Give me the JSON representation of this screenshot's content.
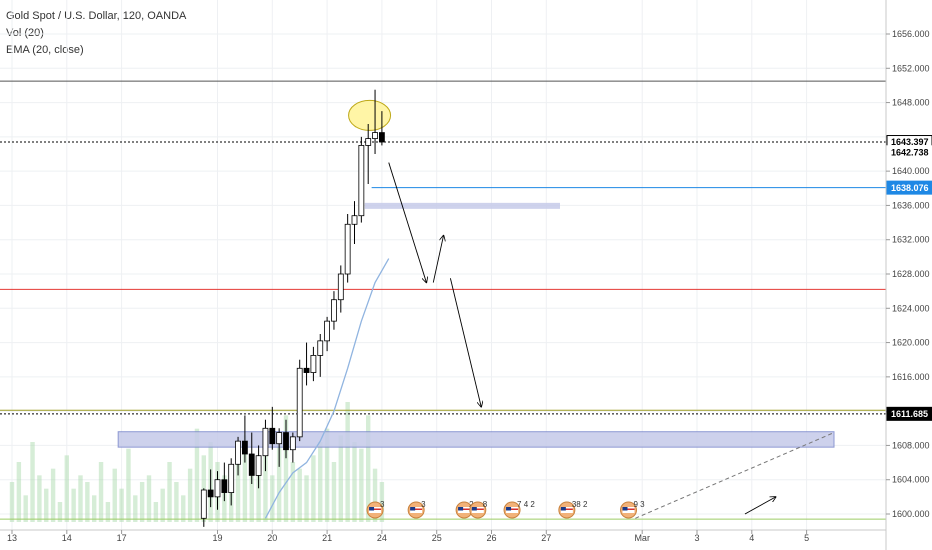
{
  "legend": {
    "title": "Gold Spot / U.S. Dollar, 120, OANDA",
    "volume": "Vol (20)",
    "ema": "EMA (20, close)"
  },
  "colors": {
    "up": "#ffffff",
    "down": "#000000",
    "wick": "#000000",
    "volume": "#a5d6a7",
    "ema": "#90b4e0",
    "red_line": "#e53935",
    "blue_line": "#1e88e5",
    "zone": "#c5cae9",
    "highlight": "#fff59d",
    "green_line": "#9ccc65"
  },
  "chart_data": {
    "type": "candlestick",
    "title": "Gold Spot / U.S. Dollar, 120, OANDA",
    "x_ticks": [
      {
        "i": 0,
        "label": "13"
      },
      {
        "i": 8,
        "label": "14"
      },
      {
        "i": 16,
        "label": "17"
      },
      {
        "i": 30,
        "label": "19"
      },
      {
        "i": 38,
        "label": "20"
      },
      {
        "i": 46,
        "label": "21"
      },
      {
        "i": 54,
        "label": "24"
      },
      {
        "i": 62,
        "label": "25"
      },
      {
        "i": 70,
        "label": "26"
      },
      {
        "i": 78,
        "label": "27"
      },
      {
        "i": 92,
        "label": "Mar"
      },
      {
        "i": 100,
        "label": "3"
      },
      {
        "i": 108,
        "label": "4"
      },
      {
        "i": 116,
        "label": "5"
      }
    ],
    "y_ticks": [
      1600,
      1604,
      1608,
      1612,
      1616,
      1620,
      1624,
      1628,
      1632,
      1636,
      1640,
      1644,
      1648,
      1652,
      1656
    ],
    "y_tick_labels": [
      "1600.000",
      "1604.000",
      "1608.000",
      "",
      "1616.000",
      "1620.000",
      "1624.000",
      "1628.000",
      "1632.000",
      "1636.000",
      "1640.000",
      "",
      "1648.000",
      "1652.000",
      "1656.000"
    ],
    "ylim": [
      1598,
      1660
    ],
    "candles": [
      {
        "i": 28,
        "o": 1599.5,
        "h": 1603.0,
        "l": 1598.5,
        "c": 1602.8
      },
      {
        "i": 29,
        "o": 1602.8,
        "h": 1605.2,
        "l": 1600.8,
        "c": 1602.0
      },
      {
        "i": 30,
        "o": 1602.0,
        "h": 1605.0,
        "l": 1600.5,
        "c": 1604.0
      },
      {
        "i": 31,
        "o": 1604.0,
        "h": 1606.0,
        "l": 1601.5,
        "c": 1602.5
      },
      {
        "i": 32,
        "o": 1602.5,
        "h": 1606.5,
        "l": 1601.0,
        "c": 1605.8
      },
      {
        "i": 33,
        "o": 1605.8,
        "h": 1609.0,
        "l": 1604.5,
        "c": 1608.5
      },
      {
        "i": 34,
        "o": 1608.5,
        "h": 1611.5,
        "l": 1606.0,
        "c": 1607.0
      },
      {
        "i": 35,
        "o": 1607.0,
        "h": 1609.5,
        "l": 1603.5,
        "c": 1604.5
      },
      {
        "i": 36,
        "o": 1604.5,
        "h": 1608.0,
        "l": 1603.0,
        "c": 1606.8
      },
      {
        "i": 37,
        "o": 1606.8,
        "h": 1611.0,
        "l": 1605.0,
        "c": 1610.0
      },
      {
        "i": 38,
        "o": 1610.0,
        "h": 1612.5,
        "l": 1607.5,
        "c": 1608.2
      },
      {
        "i": 39,
        "o": 1608.2,
        "h": 1610.0,
        "l": 1605.5,
        "c": 1609.5
      },
      {
        "i": 40,
        "o": 1609.5,
        "h": 1611.0,
        "l": 1606.5,
        "c": 1607.5
      },
      {
        "i": 41,
        "o": 1607.5,
        "h": 1609.5,
        "l": 1606.0,
        "c": 1609.0
      },
      {
        "i": 42,
        "o": 1609.0,
        "h": 1618.0,
        "l": 1608.5,
        "c": 1617.0
      },
      {
        "i": 43,
        "o": 1617.0,
        "h": 1620.0,
        "l": 1615.0,
        "c": 1616.5
      },
      {
        "i": 44,
        "o": 1616.5,
        "h": 1619.5,
        "l": 1615.5,
        "c": 1618.5
      },
      {
        "i": 45,
        "o": 1618.5,
        "h": 1621.0,
        "l": 1616.0,
        "c": 1620.2
      },
      {
        "i": 46,
        "o": 1620.2,
        "h": 1623.0,
        "l": 1619.0,
        "c": 1622.5
      },
      {
        "i": 47,
        "o": 1622.5,
        "h": 1626.0,
        "l": 1621.5,
        "c": 1625.0
      },
      {
        "i": 48,
        "o": 1625.0,
        "h": 1629.0,
        "l": 1623.5,
        "c": 1628.0
      },
      {
        "i": 49,
        "o": 1628.0,
        "h": 1635.0,
        "l": 1627.0,
        "c": 1633.8
      },
      {
        "i": 50,
        "o": 1633.8,
        "h": 1636.5,
        "l": 1631.5,
        "c": 1634.8
      },
      {
        "i": 51,
        "o": 1634.8,
        "h": 1644.0,
        "l": 1634.0,
        "c": 1643.0
      },
      {
        "i": 52,
        "o": 1643.0,
        "h": 1645.5,
        "l": 1638.5,
        "c": 1643.8
      },
      {
        "i": 53,
        "o": 1643.8,
        "h": 1649.5,
        "l": 1642.0,
        "c": 1644.5
      },
      {
        "i": 54,
        "o": 1644.5,
        "h": 1647.0,
        "l": 1643.0,
        "c": 1643.4
      }
    ],
    "volume": [
      6,
      9,
      4,
      12,
      7,
      5,
      8,
      3,
      10,
      5,
      7,
      6,
      4,
      9,
      3,
      8,
      5,
      11,
      4,
      6,
      7,
      3,
      5,
      9,
      6,
      4,
      8,
      14,
      10,
      12,
      9,
      7,
      6,
      11,
      13,
      9,
      8,
      10,
      7,
      12,
      16,
      9,
      8,
      7,
      10,
      12,
      14,
      9,
      13,
      18,
      12,
      11,
      16,
      8,
      6
    ],
    "ema": [
      {
        "i": 37,
        "v": 1599.5
      },
      {
        "i": 39,
        "v": 1602.5
      },
      {
        "i": 41,
        "v": 1604.8
      },
      {
        "i": 43,
        "v": 1606.0
      },
      {
        "i": 45,
        "v": 1608.5
      },
      {
        "i": 47,
        "v": 1612.0
      },
      {
        "i": 49,
        "v": 1617.0
      },
      {
        "i": 51,
        "v": 1622.5
      },
      {
        "i": 53,
        "v": 1627.0
      },
      {
        "i": 55,
        "v": 1629.8
      }
    ],
    "hlines": [
      {
        "name": "black-line-top",
        "v": 1650.5,
        "color": "#555555",
        "dash": ""
      },
      {
        "name": "dotted-line-current",
        "v": 1643.397,
        "color": "#000000",
        "dash": "2,2"
      },
      {
        "name": "red-line",
        "v": 1626.2,
        "color": "#e53935",
        "dash": ""
      },
      {
        "name": "olive-line",
        "v": 1612.1,
        "color": "#9e9d24",
        "dash": ""
      },
      {
        "name": "dotted-line-low",
        "v": 1611.685,
        "color": "#000000",
        "dash": "2,2"
      },
      {
        "name": "green-line-bottom",
        "v": 1599.4,
        "color": "#9ccc65",
        "dash": ""
      }
    ],
    "zones": [
      {
        "name": "lower-zone",
        "i1": 15.5,
        "i2": 120,
        "v1": 1607.8,
        "v2": 1609.6
      },
      {
        "name": "upper-zone",
        "i1": 51.5,
        "i2": 80,
        "v1": 1635.6,
        "v2": 1636.3
      }
    ],
    "blue_line": {
      "i1": 52.5,
      "v": 1638.076
    },
    "arrows": [
      {
        "i1": 55,
        "v1": 1641.0,
        "i2": 60.5,
        "v2": 1627.0
      },
      {
        "i1": 61.5,
        "v1": 1627.0,
        "i2": 63,
        "v2": 1632.5
      },
      {
        "i1": 64,
        "v1": 1627.5,
        "i2": 68.5,
        "v2": 1612.5
      },
      {
        "i1": 107,
        "v1": 1600.0,
        "i2": 111.5,
        "v2": 1602.0
      }
    ],
    "ellipse": {
      "i": 52.2,
      "v": 1646.5
    },
    "dashed_trend": {
      "i1": 91,
      "v1": 1599.5,
      "i2": 120,
      "v2": 1609.5
    },
    "price_tags": [
      {
        "label": "1643.397",
        "v": 1643.397,
        "bg": "#ffffff",
        "fg": "#000000",
        "border": "#000000"
      },
      {
        "label": "1642.738",
        "v": 1642.2,
        "bg": "#ffffff",
        "fg": "#000000",
        "border": "#ffffff"
      },
      {
        "label": "1638.076",
        "v": 1638.076,
        "bg": "#1e88e5",
        "fg": "#ffffff",
        "border": "#1e88e5"
      },
      {
        "label": "1611.685",
        "v": 1611.685,
        "bg": "#000000",
        "fg": "#ffffff",
        "border": "#000000"
      }
    ],
    "events": [
      {
        "i": 53,
        "label": "3"
      },
      {
        "i": 59,
        "label": "3"
      },
      {
        "i": 66,
        "label": "2"
      },
      {
        "i": 68,
        "label": "8"
      },
      {
        "i": 73,
        "label": "7 4 2"
      },
      {
        "i": 81,
        "label": "38 2"
      },
      {
        "i": 90,
        "label": "9 3"
      }
    ]
  }
}
